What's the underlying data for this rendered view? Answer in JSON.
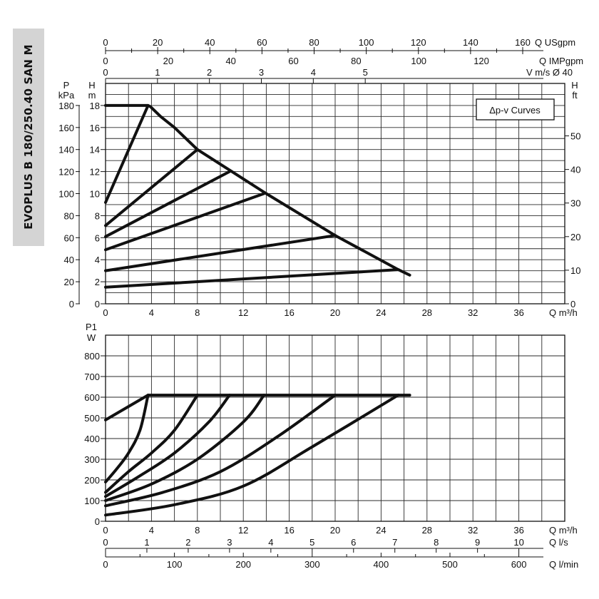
{
  "model_title": "EVOPLUS B 180/250.40 SAN M",
  "chart_data": [
    {
      "type": "line",
      "title": "Δp-v Curves",
      "x_label": "Q m³/h",
      "x_ticks": [
        "0",
        "4",
        "8",
        "12",
        "16",
        "20",
        "24",
        "28",
        "32",
        "36"
      ],
      "xlim": [
        0,
        40
      ],
      "y_left_label_p": "P",
      "y_left_unit_p": "kPa",
      "y_left_ticks_p": [
        "0",
        "20",
        "40",
        "60",
        "80",
        "100",
        "120",
        "140",
        "160",
        "180"
      ],
      "y_left_label_h": "H",
      "y_left_unit_h": "m",
      "y_left_ticks_h": [
        "0",
        "2",
        "4",
        "6",
        "8",
        "10",
        "12",
        "14",
        "16",
        "18"
      ],
      "ylim": [
        0,
        20
      ],
      "y_right_label": "H",
      "y_right_unit": "ft",
      "y_right_ticks": [
        "0",
        "10",
        "20",
        "30",
        "40",
        "50"
      ],
      "top_axis_usgpm_label": "Q USgpm",
      "top_axis_usgpm_ticks": [
        "0",
        "20",
        "40",
        "60",
        "80",
        "100",
        "120",
        "140",
        "160"
      ],
      "top_axis_impgpm_label": "Q IMPgpm",
      "top_axis_impgpm_ticks": [
        "0",
        "20",
        "40",
        "60",
        "80",
        "100",
        "120"
      ],
      "top_axis_velocity_label": "V m/s Ø 40",
      "top_axis_velocity_ticks": [
        "0",
        "1",
        "2",
        "3",
        "4",
        "5"
      ],
      "series": [
        {
          "x": [
            0,
            3.7,
            3.9,
            4.2,
            4.8,
            6,
            8,
            11,
            14,
            20,
            25.5,
            26.5
          ],
          "y": [
            18,
            18,
            17.9,
            17.6,
            17,
            16,
            14,
            12,
            10,
            6.2,
            3.1,
            2.6
          ]
        },
        {
          "x": [
            0,
            3.7
          ],
          "y": [
            9.2,
            18
          ]
        },
        {
          "x": [
            0,
            8
          ],
          "y": [
            7.1,
            14
          ]
        },
        {
          "x": [
            0,
            10.8
          ],
          "y": [
            6.1,
            12
          ]
        },
        {
          "x": [
            0,
            13.8
          ],
          "y": [
            4.9,
            10
          ]
        },
        {
          "x": [
            0,
            20
          ],
          "y": [
            3.0,
            6.2
          ]
        },
        {
          "x": [
            0,
            25.5
          ],
          "y": [
            1.5,
            3.1
          ]
        }
      ]
    },
    {
      "type": "line",
      "x_label": "Q m³/h",
      "x_ticks": [
        "0",
        "4",
        "8",
        "12",
        "16",
        "20",
        "24",
        "28",
        "32",
        "36"
      ],
      "xlim": [
        0,
        40
      ],
      "y_label": "P1",
      "y_unit": "W",
      "y_ticks": [
        "0",
        "100",
        "200",
        "300",
        "400",
        "500",
        "600",
        "700",
        "800"
      ],
      "ylim": [
        0,
        900
      ],
      "bottom_axis_ls_label": "Q l/s",
      "bottom_axis_ls_ticks": [
        "0",
        "1",
        "2",
        "3",
        "4",
        "5",
        "6",
        "7",
        "8",
        "9",
        "10"
      ],
      "bottom_axis_lmin_label": "Q l/min",
      "bottom_axis_lmin_ticks": [
        "0",
        "100",
        "200",
        "300",
        "400",
        "500",
        "600"
      ],
      "series": [
        {
          "x": [
            0,
            3.7,
            26.5
          ],
          "y": [
            490,
            610,
            610
          ]
        },
        {
          "x": [
            0,
            1,
            2,
            3,
            3.7
          ],
          "y": [
            190,
            255,
            330,
            440,
            610
          ]
        },
        {
          "x": [
            0,
            2,
            4,
            6,
            8
          ],
          "y": [
            140,
            240,
            330,
            440,
            610
          ]
        },
        {
          "x": [
            0,
            3,
            6,
            9,
            10.8
          ],
          "y": [
            120,
            220,
            330,
            480,
            610
          ]
        },
        {
          "x": [
            0,
            4,
            8,
            12,
            13.8
          ],
          "y": [
            100,
            180,
            300,
            480,
            610
          ]
        },
        {
          "x": [
            0,
            5,
            10,
            15,
            20
          ],
          "y": [
            75,
            140,
            240,
            410,
            610
          ]
        },
        {
          "x": [
            0,
            6,
            12,
            18,
            25.5
          ],
          "y": [
            30,
            80,
            170,
            360,
            610
          ]
        }
      ]
    }
  ]
}
